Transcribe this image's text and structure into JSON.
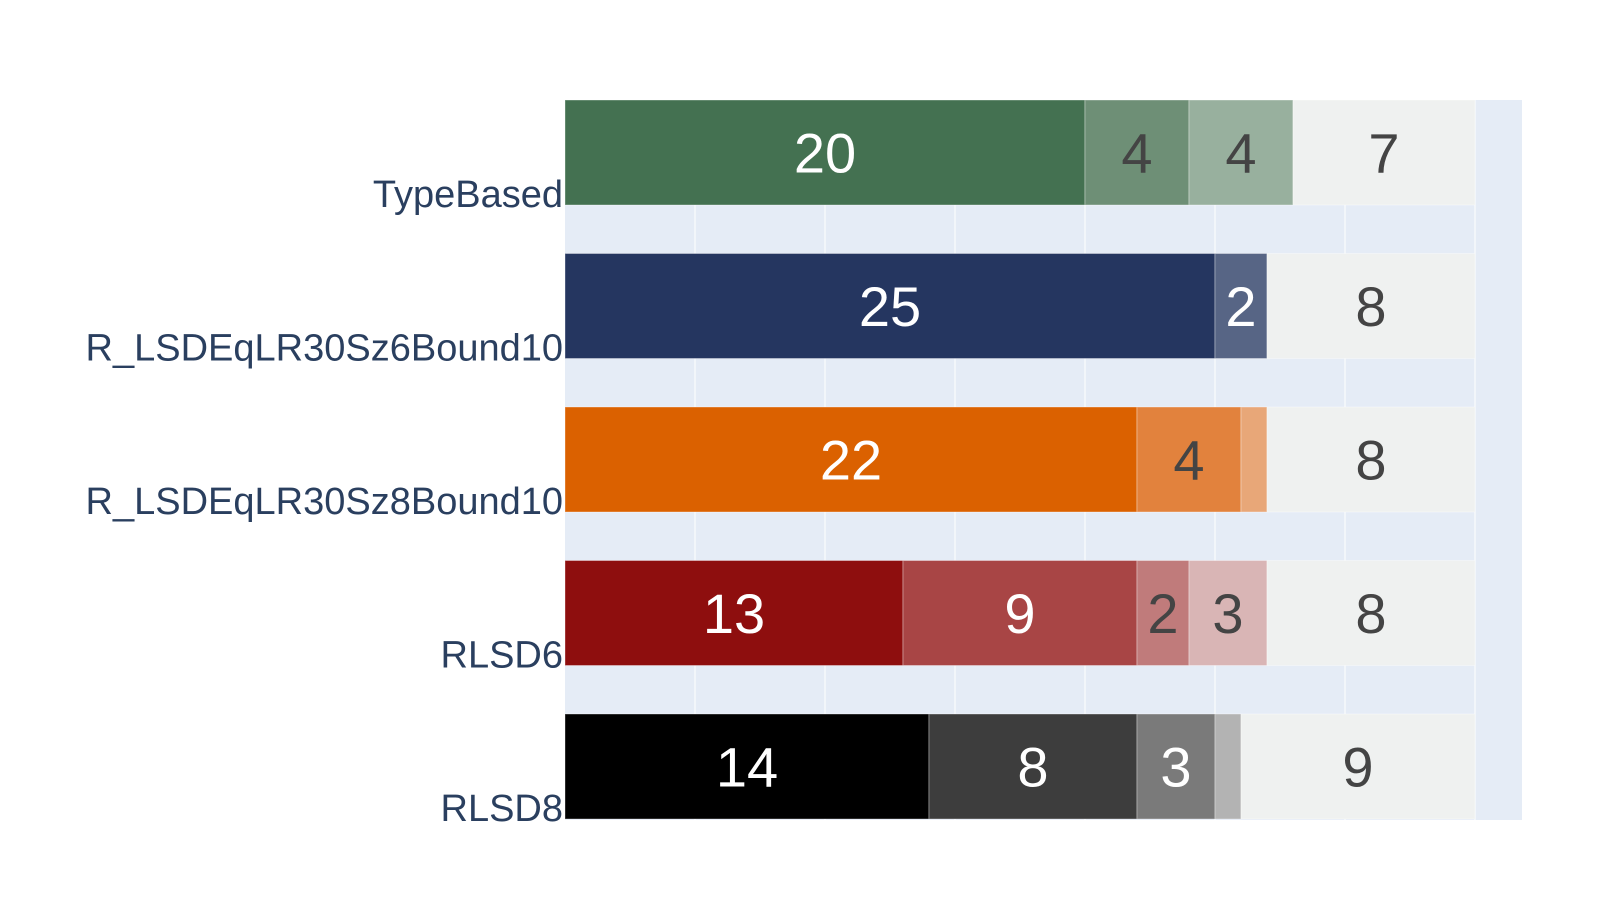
{
  "chart_data": {
    "type": "bar",
    "orientation": "horizontal",
    "stacked": true,
    "categories": [
      "TypeBased",
      "R_LSDEqLR30Sz6Bound10",
      "R_LSDEqLR30Sz8Bound10",
      "RLSD6",
      "RLSD8"
    ],
    "xlim": [
      0,
      37
    ],
    "grid": true,
    "bars": [
      {
        "category": "TypeBased",
        "segments": [
          {
            "value": 20,
            "color": "#447151",
            "label": "20",
            "text_color": "#ffffff"
          },
          {
            "value": 4,
            "color": "#6e8f76",
            "label": "4",
            "text_color": "#444444"
          },
          {
            "value": 4,
            "color": "#98b09e",
            "label": "4",
            "text_color": "#444444"
          },
          {
            "value": 7,
            "color": "#eff1f0",
            "label": "7",
            "text_color": "#444444"
          }
        ]
      },
      {
        "category": "R_LSDEqLR30Sz6Bound10",
        "segments": [
          {
            "value": 25,
            "color": "#253660",
            "label": "25",
            "text_color": "#ffffff"
          },
          {
            "value": 2,
            "color": "#576585",
            "label": "2",
            "text_color": "#ffffff"
          },
          {
            "value": 8,
            "color": "#eff1f0",
            "label": "8",
            "text_color": "#444444"
          }
        ]
      },
      {
        "category": "R_LSDEqLR30Sz8Bound10",
        "segments": [
          {
            "value": 22,
            "color": "#db6100",
            "label": "22",
            "text_color": "#ffffff"
          },
          {
            "value": 4,
            "color": "#e2823d",
            "label": "4",
            "text_color": "#444444"
          },
          {
            "value": 1,
            "color": "#e8a778",
            "label": "",
            "text_color": "#444444"
          },
          {
            "value": 8,
            "color": "#eff1f0",
            "label": "8",
            "text_color": "#444444"
          }
        ]
      },
      {
        "category": "RLSD6",
        "segments": [
          {
            "value": 13,
            "color": "#8e0e0e",
            "label": "13",
            "text_color": "#ffffff"
          },
          {
            "value": 9,
            "color": "#a84545",
            "label": "9",
            "text_color": "#ffffff"
          },
          {
            "value": 2,
            "color": "#c07b7b",
            "label": "2",
            "text_color": "#444444"
          },
          {
            "value": 3,
            "color": "#d9b5b5",
            "label": "3",
            "text_color": "#444444"
          },
          {
            "value": 8,
            "color": "#eff1f0",
            "label": "8",
            "text_color": "#444444"
          }
        ]
      },
      {
        "category": "RLSD8",
        "segments": [
          {
            "value": 14,
            "color": "#000000",
            "label": "14",
            "text_color": "#ffffff"
          },
          {
            "value": 8,
            "color": "#3d3d3d",
            "label": "8",
            "text_color": "#ffffff"
          },
          {
            "value": 3,
            "color": "#7a7a7a",
            "label": "3",
            "text_color": "#ffffff"
          },
          {
            "value": 1,
            "color": "#b3b3b3",
            "label": "",
            "text_color": "#444444"
          },
          {
            "value": 9,
            "color": "#eff1f0",
            "label": "9",
            "text_color": "#444444"
          }
        ]
      }
    ],
    "colors": {
      "plot_background": "#e5ecf6",
      "gridline": "#ffffff",
      "axis_text": "#2a3f5f"
    }
  }
}
